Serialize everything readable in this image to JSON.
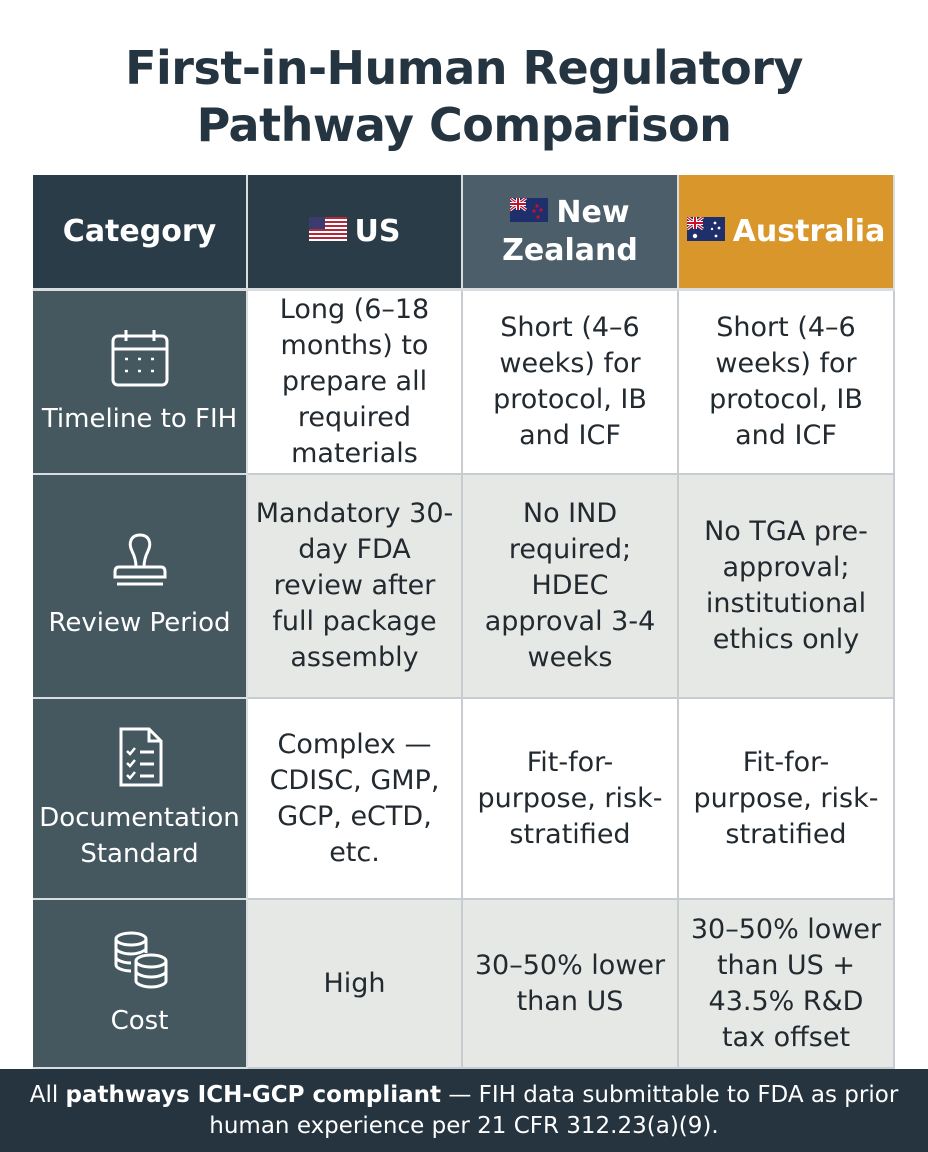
{
  "title": {
    "line1": "First-in-Human Regulatory",
    "line2": "Pathway Comparison"
  },
  "headers": {
    "category": "Category",
    "us": "US",
    "nz": "New Zealand",
    "au": "Australia"
  },
  "flags": {
    "us": "us-flag-icon",
    "nz": "new-zealand-flag-icon",
    "au": "australia-flag-icon"
  },
  "rows": [
    {
      "category": "Timeline to FIH",
      "icon": "calendar-icon",
      "us": "Long (6–18 months) to prepare all required materials",
      "nz": "Short (4–6 weeks) for protocol, IB and ICF",
      "au": "Short (4–6 weeks) for protocol, IB and ICF"
    },
    {
      "category": "Review Period",
      "icon": "stamp-icon",
      "us": "Mandatory 30-day FDA review after full package assembly",
      "nz": "No IND required; HDEC approval 3-4 weeks",
      "au": "No TGA pre-approval; institutional ethics only"
    },
    {
      "category": "Documentation Standard",
      "icon": "checklist-document-icon",
      "us": "Complex — CDISC, GMP, GCP, eCTD, etc.",
      "nz": "Fit-for-purpose, risk-stratified",
      "au": "Fit-for-purpose, risk-stratified"
    },
    {
      "category": "Cost",
      "icon": "coins-icon",
      "us": "High",
      "nz": "30–50% lower than US",
      "au": "30–50% lower than US + 43.5% R&D tax offset"
    }
  ],
  "footer": {
    "prefix": "All ",
    "bold": "pathways ICH-GCP compliant",
    "suffix": " — FIH data submittable to FDA as prior human experience per 21 CFR 312.23(a)(9)."
  },
  "colors": {
    "header_dark": "#2b3c49",
    "header_nz": "#4b5e69",
    "header_au": "#d9962a",
    "category_column": "#45575f",
    "footer": "#26343f"
  }
}
